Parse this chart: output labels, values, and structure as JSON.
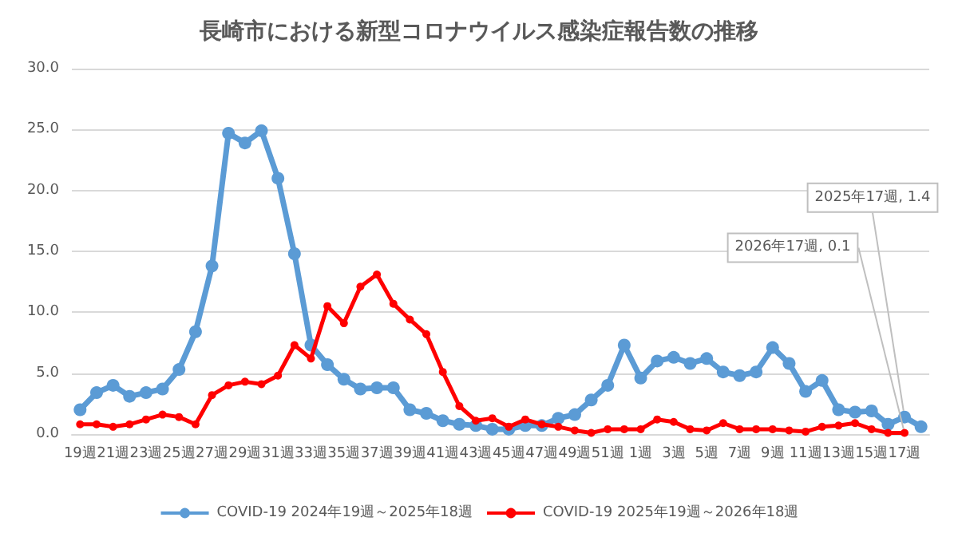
{
  "chart_data": {
    "type": "line",
    "title": "長崎市における新型コロナウイルス感染症報告数の推移",
    "categories": [
      "19週",
      null,
      "21週",
      null,
      "23週",
      null,
      "25週",
      null,
      "27週",
      null,
      "29週",
      null,
      "31週",
      null,
      "33週",
      null,
      "35週",
      null,
      "37週",
      null,
      "39週",
      null,
      "41週",
      null,
      "43週",
      null,
      "45週",
      null,
      "47週",
      null,
      "49週",
      null,
      "51週",
      null,
      "1週",
      null,
      "3週",
      null,
      "5週",
      null,
      "7週",
      null,
      "9週",
      null,
      "11週",
      null,
      "13週",
      null,
      "15週",
      null,
      "17週",
      null
    ],
    "series": [
      {
        "name": "COVID-19 2024年19週～2025年18週",
        "color": "#5b9bd5",
        "values": [
          2.0,
          3.4,
          4.0,
          3.1,
          3.4,
          3.7,
          5.3,
          8.4,
          13.8,
          24.7,
          23.9,
          24.9,
          21.0,
          14.8,
          7.3,
          5.7,
          4.5,
          3.7,
          3.8,
          3.8,
          2.0,
          1.7,
          1.1,
          0.8,
          0.7,
          0.4,
          0.4,
          0.7,
          0.7,
          1.3,
          1.6,
          2.8,
          4.0,
          7.3,
          4.6,
          6.0,
          6.3,
          5.8,
          6.2,
          5.1,
          4.8,
          5.1,
          7.1,
          5.8,
          3.5,
          4.4,
          2.0,
          1.8,
          1.9,
          0.8,
          1.4,
          0.6
        ]
      },
      {
        "name": "COVID-19 2025年19週～2026年18週",
        "color": "#ff0000",
        "values": [
          0.8,
          0.8,
          0.6,
          0.8,
          1.2,
          1.6,
          1.4,
          0.8,
          3.2,
          4.0,
          4.3,
          4.1,
          4.8,
          7.3,
          6.2,
          10.5,
          9.1,
          12.1,
          13.1,
          10.7,
          9.4,
          8.2,
          5.1,
          2.3,
          1.1,
          1.3,
          0.6,
          1.2,
          0.8,
          0.6,
          0.3,
          0.1,
          0.4,
          0.4,
          0.4,
          1.2,
          1.0,
          0.4,
          0.3,
          0.9,
          0.4,
          0.4,
          0.4,
          0.3,
          0.2,
          0.6,
          0.7,
          0.9,
          0.4,
          0.1,
          0.1,
          null
        ]
      }
    ],
    "annotations": [
      {
        "text": "2026年17週, 0.1",
        "x": "17週",
        "y": 0.1
      },
      {
        "text": "2025年17週, 1.4",
        "x": "17週",
        "y": 1.4
      }
    ],
    "ylim": [
      0,
      30
    ],
    "yticks": [
      {
        "value": 0,
        "label": "0.0"
      },
      {
        "value": 5,
        "label": "5.0"
      },
      {
        "value": 10,
        "label": "10.0"
      },
      {
        "value": 15,
        "label": "15.0"
      },
      {
        "value": 20,
        "label": "20.0"
      },
      {
        "value": 25,
        "label": "25.0"
      },
      {
        "value": 30,
        "label": "30.0"
      }
    ],
    "grid": "y",
    "legend": "bottom",
    "marker": "circle",
    "line_style": "solid"
  }
}
